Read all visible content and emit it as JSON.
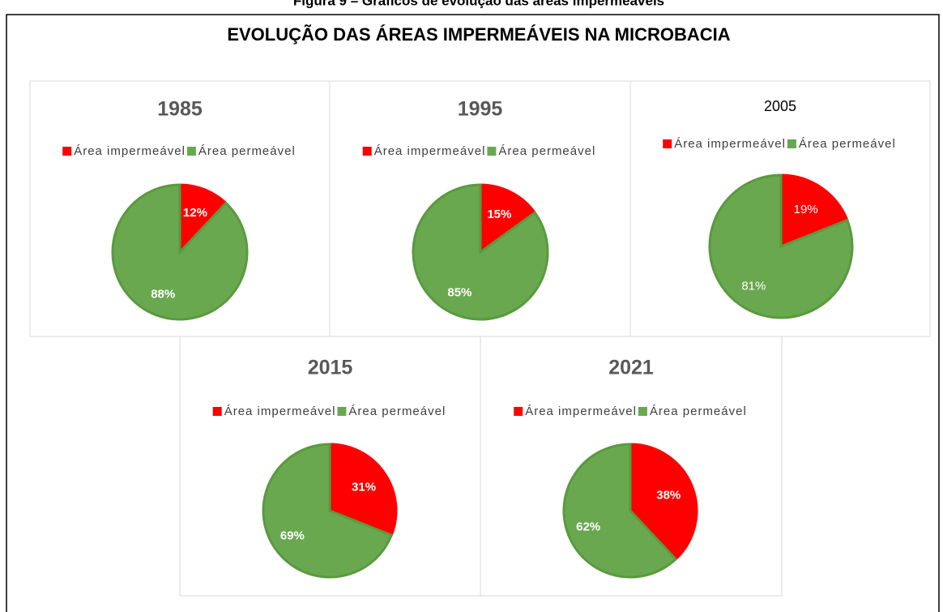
{
  "caption": "Figura 9 – Gráficos de evolução das áreas impermeáveis",
  "title": "EVOLUÇÃO DAS ÁREAS IMPERMEÁVEIS NA MICROBACIA",
  "chart_data": [
    {
      "type": "pie",
      "title": "1985",
      "categories": [
        "Área impermeável",
        "Área permeável"
      ],
      "values": [
        12,
        88
      ],
      "value_labels": [
        "12%",
        "88%"
      ],
      "colors": [
        "#ff0000",
        "#6aa84f"
      ]
    },
    {
      "type": "pie",
      "title": "1995",
      "categories": [
        "Área impermeável",
        "Área permeável"
      ],
      "values": [
        15,
        85
      ],
      "value_labels": [
        "15%",
        "85%"
      ],
      "colors": [
        "#ff0000",
        "#6aa84f"
      ]
    },
    {
      "type": "pie",
      "title": "2005",
      "categories": [
        "Área impermeável",
        "Área permeável"
      ],
      "values": [
        19,
        81
      ],
      "value_labels": [
        "19%",
        "81%"
      ],
      "colors": [
        "#ff0000",
        "#6aa84f"
      ]
    },
    {
      "type": "pie",
      "title": "2015",
      "categories": [
        "Área impermeável",
        "Área permeável"
      ],
      "values": [
        31,
        69
      ],
      "value_labels": [
        "31%",
        "69%"
      ],
      "colors": [
        "#ff0000",
        "#6aa84f"
      ]
    },
    {
      "type": "pie",
      "title": "2021",
      "categories": [
        "Área impermeável",
        "Área permeável"
      ],
      "values": [
        38,
        62
      ],
      "value_labels": [
        "38%",
        "62%"
      ],
      "colors": [
        "#ff0000",
        "#6aa84f"
      ]
    }
  ]
}
